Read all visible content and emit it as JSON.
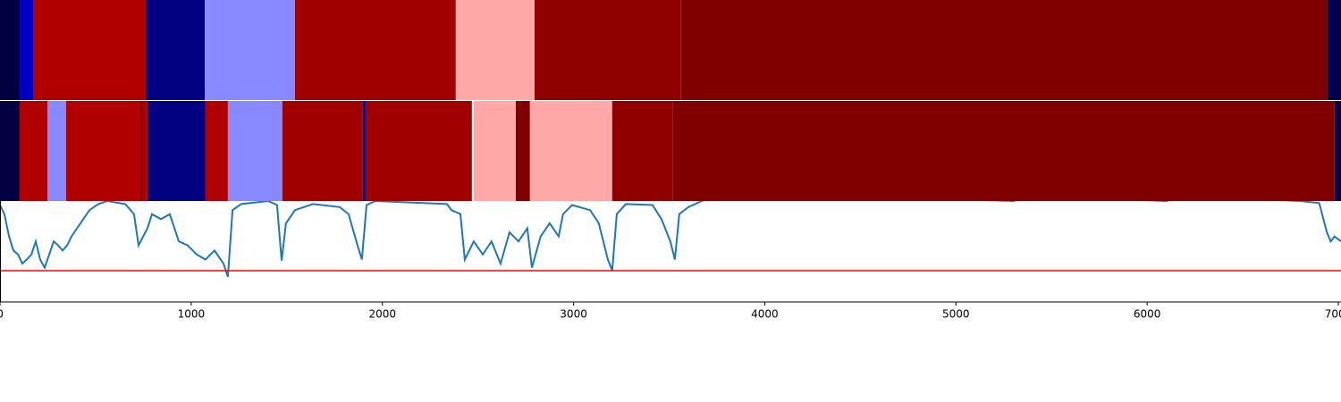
{
  "chart_data": {
    "type": "segmentation",
    "xlim": [
      0,
      7014
    ],
    "xticks": [
      0,
      1000,
      2000,
      3000,
      4000,
      5000,
      6000,
      7000
    ],
    "ylim": [
      0,
      1
    ],
    "tracks": [
      {
        "segments": [
          {
            "start": 0,
            "end": 103,
            "color": "#000040"
          },
          {
            "start": 103,
            "end": 173,
            "color": "#0000c4"
          },
          {
            "start": 173,
            "end": 762,
            "color": "#b00000"
          },
          {
            "start": 762,
            "end": 1071,
            "color": "#000080"
          },
          {
            "start": 1071,
            "end": 1543,
            "color": "#8888ff"
          },
          {
            "start": 1543,
            "end": 2384,
            "color": "#a00000"
          },
          {
            "start": 2384,
            "end": 2796,
            "color": "#ffa8a8"
          },
          {
            "start": 2796,
            "end": 3562,
            "color": "#8f0000"
          },
          {
            "start": 3562,
            "end": 6942,
            "color": "#800000"
          },
          {
            "start": 6942,
            "end": 7014,
            "color": "#000050"
          }
        ]
      },
      {
        "segments": [
          {
            "start": 0,
            "end": 103,
            "color": "#000040"
          },
          {
            "start": 103,
            "end": 248,
            "color": "#b00000"
          },
          {
            "start": 248,
            "end": 346,
            "color": "#8888ff"
          },
          {
            "start": 346,
            "end": 734,
            "color": "#b00000"
          },
          {
            "start": 734,
            "end": 748,
            "color": "#800000"
          },
          {
            "start": 748,
            "end": 771,
            "color": "#b00000"
          },
          {
            "start": 771,
            "end": 1075,
            "color": "#000080"
          },
          {
            "start": 1075,
            "end": 1192,
            "color": "#b00000"
          },
          {
            "start": 1192,
            "end": 1477,
            "color": "#8888ff"
          },
          {
            "start": 1477,
            "end": 1898,
            "color": "#a00000"
          },
          {
            "start": 1898,
            "end": 1912,
            "color": "#000080"
          },
          {
            "start": 1912,
            "end": 2468,
            "color": "#a00000"
          },
          {
            "start": 2478,
            "end": 2698,
            "color": "#ffa8a8"
          },
          {
            "start": 2698,
            "end": 2772,
            "color": "#800000"
          },
          {
            "start": 2772,
            "end": 3202,
            "color": "#ffa8a8"
          },
          {
            "start": 3202,
            "end": 3520,
            "color": "#900000"
          },
          {
            "start": 3520,
            "end": 6980,
            "color": "#800000"
          },
          {
            "start": 6980,
            "end": 7014,
            "color": "#000050"
          }
        ]
      }
    ],
    "line": {
      "color": "#1f77b4",
      "x": [
        0,
        23,
        47,
        70,
        94,
        117,
        140,
        164,
        187,
        210,
        234,
        257,
        281,
        304,
        327,
        351,
        374,
        421,
        468,
        514,
        561,
        655,
        701,
        725,
        771,
        795,
        842,
        888,
        935,
        982,
        1029,
        1075,
        1122,
        1169,
        1192,
        1216,
        1262,
        1403,
        1449,
        1473,
        1496,
        1543,
        1636,
        1777,
        1823,
        1870,
        1893,
        1917,
        1964,
        2338,
        2361,
        2408,
        2431,
        2478,
        2525,
        2571,
        2618,
        2665,
        2712,
        2758,
        2782,
        2828,
        2875,
        2922,
        2945,
        2992,
        3086,
        3132,
        3179,
        3202,
        3226,
        3273,
        3413,
        3460,
        3506,
        3530,
        3553,
        3600,
        3670,
        3740,
        4500,
        5300,
        5400,
        6100,
        6200,
        6800,
        6900,
        6940,
        6960,
        6980,
        7000,
        7014
      ],
      "values": [
        0.96,
        0.87,
        0.65,
        0.51,
        0.47,
        0.38,
        0.42,
        0.47,
        0.6,
        0.42,
        0.34,
        0.47,
        0.6,
        0.56,
        0.51,
        0.56,
        0.65,
        0.78,
        0.91,
        0.97,
        1.0,
        0.97,
        0.87,
        0.56,
        0.73,
        0.87,
        0.82,
        0.87,
        0.6,
        0.56,
        0.47,
        0.42,
        0.51,
        0.38,
        0.25,
        0.91,
        0.97,
        1.0,
        0.96,
        0.41,
        0.78,
        0.91,
        0.97,
        0.94,
        0.87,
        0.56,
        0.42,
        0.96,
        1.0,
        0.97,
        0.91,
        0.87,
        0.42,
        0.6,
        0.47,
        0.6,
        0.38,
        0.69,
        0.6,
        0.73,
        0.34,
        0.65,
        0.78,
        0.65,
        0.87,
        0.96,
        0.91,
        0.78,
        0.42,
        0.31,
        0.87,
        0.97,
        0.96,
        0.82,
        0.6,
        0.42,
        0.87,
        0.94,
        1.0,
        1.05,
        1.05,
        1.0,
        1.05,
        1.0,
        1.05,
        1.0,
        0.98,
        0.69,
        0.6,
        0.65,
        0.62,
        0.6
      ]
    },
    "threshold": {
      "value": 0.31,
      "color": "#ff0000"
    }
  }
}
